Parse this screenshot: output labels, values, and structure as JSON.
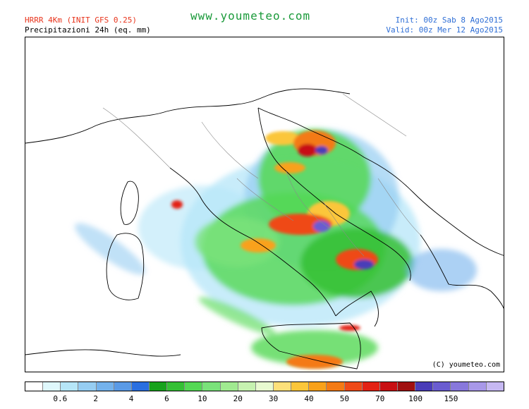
{
  "header": {
    "model": "HRRR 4Km (INIT GFS 0.25)",
    "field": "Precipitazioni 24h (eq. mm)",
    "site": "www.youmeteo.com",
    "init": "Init: 00z Sab  8  Ago2015",
    "valid": "Valid: 00z Mer  12 Ago2015"
  },
  "map": {
    "copyright": "(C) youmeteo.com"
  },
  "legend": {
    "colors": [
      "#ffffff",
      "#dff8fc",
      "#b6e6f8",
      "#96cdf2",
      "#74b2ec",
      "#5a9ae6",
      "#2a6fe0",
      "#17a21c",
      "#34c034",
      "#54d854",
      "#7ae27a",
      "#a0ea90",
      "#c6f2b0",
      "#e8fad0",
      "#fde07a",
      "#fbc63a",
      "#f9a11a",
      "#f47a14",
      "#ef4a18",
      "#e32214",
      "#c80f12",
      "#a01010",
      "#4a3cb8",
      "#6a5cd0",
      "#8878dc",
      "#a898e8",
      "#c6b8f2"
    ],
    "ticks": [
      {
        "label": "0.6",
        "pos": 2
      },
      {
        "label": "2",
        "pos": 4
      },
      {
        "label": "4",
        "pos": 6
      },
      {
        "label": "6",
        "pos": 8
      },
      {
        "label": "10",
        "pos": 10
      },
      {
        "label": "20",
        "pos": 12
      },
      {
        "label": "30",
        "pos": 14
      },
      {
        "label": "40",
        "pos": 16
      },
      {
        "label": "50",
        "pos": 18
      },
      {
        "label": "70",
        "pos": 20
      },
      {
        "label": "100",
        "pos": 22
      },
      {
        "label": "150",
        "pos": 24
      }
    ]
  }
}
